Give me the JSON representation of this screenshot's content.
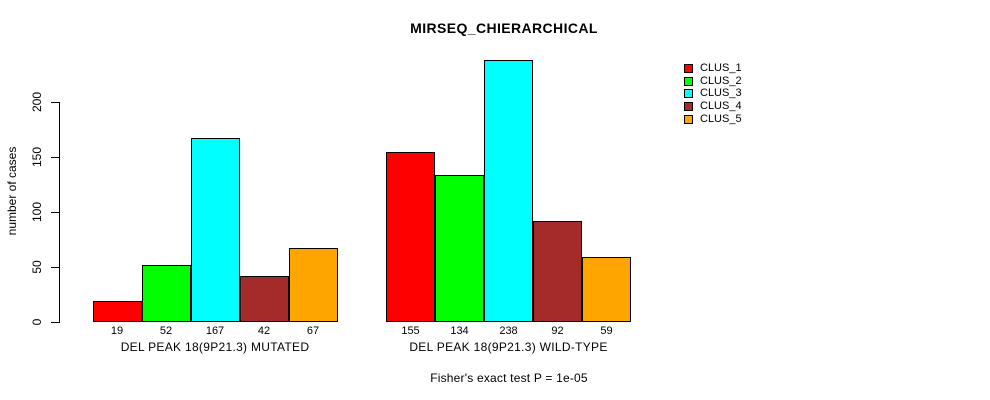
{
  "title": "MIRSEQ_CHIERARCHICAL",
  "caption": "Fisher's exact test P = 1e-05",
  "chart_data": {
    "type": "bar",
    "title": "MIRSEQ_CHIERARCHICAL",
    "ylabel": "number of cases",
    "xlabel": "",
    "yticks": [
      0,
      50,
      100,
      150,
      200
    ],
    "ylim": [
      0,
      240
    ],
    "grid": false,
    "legend_position": "right",
    "bar_value_labels_shown": true,
    "series": [
      {
        "name": "CLUS_1",
        "color": "#FF0000"
      },
      {
        "name": "CLUS_2",
        "color": "#00FF00"
      },
      {
        "name": "CLUS_3",
        "color": "#00FFFF"
      },
      {
        "name": "CLUS_4",
        "color": "#A52A2A"
      },
      {
        "name": "CLUS_5",
        "color": "#FFA500"
      }
    ],
    "groups": [
      {
        "label": "DEL PEAK 18(9P21.3) MUTATED",
        "values": [
          19,
          52,
          167,
          42,
          67
        ]
      },
      {
        "label": "DEL PEAK 18(9P21.3) WILD-TYPE",
        "values": [
          155,
          134,
          238,
          92,
          59
        ]
      }
    ],
    "annotation": "Fisher's exact test P = 1e-05"
  }
}
